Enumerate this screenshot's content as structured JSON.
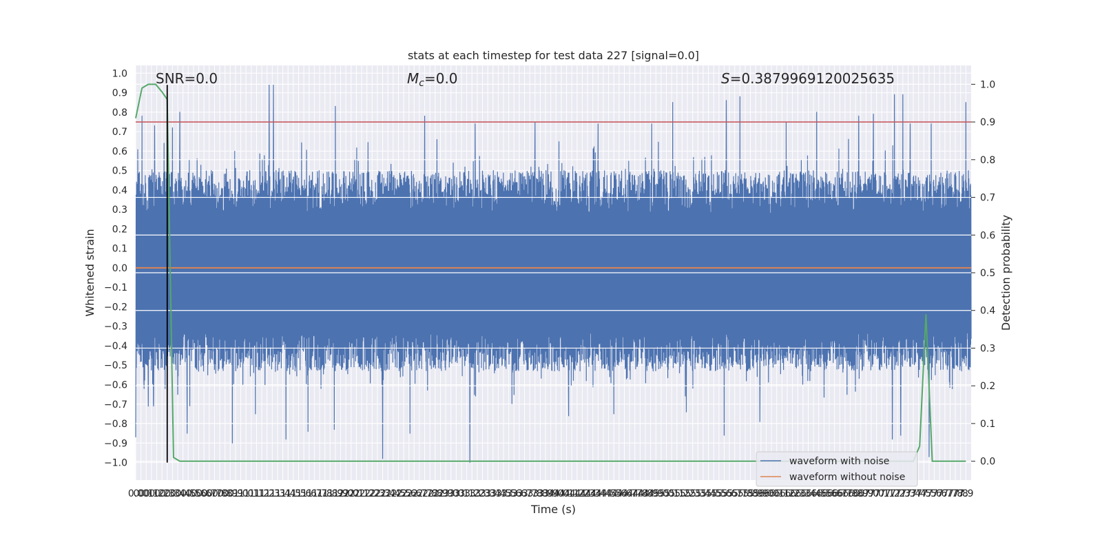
{
  "chart_data": {
    "type": "line",
    "title": "stats at each timestep for test data 227 [signal=0.0]",
    "xlabel": "Time (s)",
    "ylabel": "Whitened strain",
    "y2label": "Detection probability",
    "xlim": [
      0.0,
      7.95
    ],
    "ylim": [
      -1.09,
      1.04
    ],
    "y2lim": [
      -0.05,
      1.05
    ],
    "x_ticks": [
      0.0,
      0.05,
      0.1,
      0.15,
      0.2,
      0.25,
      0.3,
      0.35,
      0.4,
      0.45,
      0.5,
      0.55,
      0.6,
      0.65,
      0.7,
      0.75,
      0.8,
      0.85,
      0.9,
      0.95,
      1.0,
      1.05,
      1.1,
      1.15,
      1.2,
      1.25,
      1.3,
      1.35,
      1.4,
      1.45,
      1.5,
      1.55,
      1.6,
      1.65,
      1.7,
      1.75,
      1.8,
      1.85,
      1.9,
      1.95,
      2.0,
      2.05,
      2.1,
      2.15,
      2.2,
      2.25,
      2.3,
      2.35,
      2.4,
      2.45,
      2.5,
      2.55,
      2.6,
      2.65,
      2.7,
      2.75,
      2.8,
      2.85,
      2.9,
      2.95,
      3.0,
      3.05,
      3.1,
      3.15,
      3.2,
      3.25,
      3.3,
      3.35,
      3.4,
      3.45,
      3.5,
      3.55,
      3.6,
      3.65,
      3.7,
      3.75,
      3.8,
      3.85,
      3.9,
      3.95,
      4.0,
      4.05,
      4.1,
      4.15,
      4.2,
      4.25,
      4.3,
      4.35,
      4.4,
      4.45,
      4.5,
      4.55,
      4.6,
      4.65,
      4.7,
      4.75,
      4.8,
      4.85,
      4.9,
      4.95,
      5.0,
      5.05,
      5.1,
      5.15,
      5.2,
      5.25,
      5.3,
      5.35,
      5.4,
      5.45,
      5.5,
      5.55,
      5.6,
      5.65,
      5.7,
      5.75,
      5.8,
      5.85,
      5.9,
      5.95,
      6.0,
      6.05,
      6.1,
      6.15,
      6.2,
      6.25,
      6.3,
      6.35,
      6.4,
      6.45,
      6.5,
      6.55,
      6.6,
      6.65,
      6.7,
      6.75,
      6.8,
      6.85,
      6.9,
      6.95,
      7.0,
      7.05,
      7.1,
      7.15,
      7.2,
      7.25,
      7.3,
      7.35,
      7.4,
      7.45,
      7.5,
      7.55,
      7.6,
      7.65,
      7.7,
      7.75,
      7.8,
      7.85,
      7.9
    ],
    "x_tick_labels": [
      "0.0",
      "0.0",
      "0.1",
      "0.1",
      "0.2",
      "0.2",
      "0.3",
      "0.3",
      "0.4",
      "0.4",
      "0.5",
      "0.5",
      "0.6",
      "0.6",
      "0.7",
      "0.7",
      "0.8",
      "0.8",
      "0.9",
      "0.9",
      "1.0",
      "1.0",
      "1.1",
      "1.1",
      "1.2",
      "1.2",
      "1.3",
      "1.3",
      "1.4",
      "1.4",
      "1.5",
      "1.5",
      "1.6",
      "1.6",
      "1.7",
      "1.7",
      "1.8",
      "1.8",
      "1.9",
      "1.9",
      "2.0",
      "2.0",
      "2.1",
      "2.1",
      "2.2",
      "2.2",
      "2.3",
      "2.3",
      "2.4",
      "2.4",
      "2.5",
      "2.5",
      "2.6",
      "2.6",
      "2.7",
      "2.7",
      "2.8",
      "2.8",
      "2.9",
      "2.9",
      "3.0",
      "3.0",
      "3.1",
      "3.1",
      "3.2",
      "3.2",
      "3.3",
      "3.3",
      "3.4",
      "3.4",
      "3.5",
      "3.5",
      "3.6",
      "3.6",
      "3.7",
      "3.7",
      "3.8",
      "3.8",
      "3.9",
      "3.9",
      "4.0",
      "4.0",
      "4.1",
      "4.1",
      "4.2",
      "4.2",
      "4.3",
      "4.3",
      "4.4",
      "4.4",
      "4.5",
      "4.5",
      "4.6",
      "4.6",
      "4.7",
      "4.7",
      "4.8",
      "4.8",
      "4.9",
      "4.9",
      "5.0",
      "5.0",
      "5.1",
      "5.1",
      "5.2",
      "5.2",
      "5.3",
      "5.3",
      "5.4",
      "5.4",
      "5.5",
      "5.5",
      "5.6",
      "5.6",
      "5.7",
      "5.7",
      "5.8",
      "5.8",
      "5.9",
      "5.9",
      "6.0",
      "6.0",
      "6.1",
      "6.1",
      "6.2",
      "6.2",
      "6.3",
      "6.3",
      "6.4",
      "6.4",
      "6.5",
      "6.5",
      "6.6",
      "6.6",
      "6.7",
      "6.7",
      "6.8",
      "6.8",
      "6.9",
      "6.9",
      "7.0",
      "7.0",
      "7.1",
      "7.1",
      "7.2",
      "7.2",
      "7.3",
      "7.3",
      "7.4",
      "7.4",
      "7.5",
      "7.5",
      "7.6",
      "7.6",
      "7.7",
      "7.7",
      "7.8",
      "7.8",
      "7.9"
    ],
    "y_ticks": [
      -1.0,
      -0.9,
      -0.8,
      -0.7,
      -0.6,
      -0.5,
      -0.4,
      -0.3,
      -0.2,
      -0.1,
      0.0,
      0.1,
      0.2,
      0.3,
      0.4,
      0.5,
      0.6,
      0.7,
      0.8,
      0.9,
      1.0
    ],
    "y_tick_labels": [
      "−1.0",
      "−0.9",
      "−0.8",
      "−0.7",
      "−0.6",
      "−0.5",
      "−0.4",
      "−0.3",
      "−0.2",
      "−0.1",
      "0.0",
      "0.1",
      "0.2",
      "0.3",
      "0.4",
      "0.5",
      "0.6",
      "0.7",
      "0.8",
      "0.9",
      "1.0"
    ],
    "y2_ticks": [
      0.0,
      0.1,
      0.2,
      0.3,
      0.4,
      0.5,
      0.6,
      0.7,
      0.8,
      0.9,
      1.0
    ],
    "y2_tick_labels": [
      "0.0",
      "0.1",
      "0.2",
      "0.3",
      "0.4",
      "0.5",
      "0.6",
      "0.7",
      "0.8",
      "0.9",
      "1.0"
    ],
    "grid": true,
    "legend_position": "bottom-right",
    "annotations": {
      "snr": "SNR=0.0",
      "mc": "=0.0",
      "mc_symbol": "M",
      "mc_subscript": "c",
      "s": "=0.3879969120025635",
      "s_symbol": "S"
    },
    "threshold": {
      "y": 0.9,
      "axis": "right",
      "color": "#c44e52"
    },
    "marker_line": {
      "x": 0.3,
      "y_range": [
        -1.0,
        0.94
      ],
      "color": "#000000"
    },
    "series": [
      {
        "name": "waveform with noise",
        "color": "#4c72b0",
        "axis": "left",
        "description_type": "dense_noise",
        "x_range": [
          0.0,
          7.95
        ],
        "envelope_high": 0.94,
        "envelope_low": -1.0,
        "peaks_high": [
          [
            0.06,
            0.78
          ],
          [
            0.18,
            0.73
          ],
          [
            0.27,
            0.64
          ],
          [
            0.35,
            0.72
          ],
          [
            0.42,
            0.8
          ],
          [
            0.49,
            0.82
          ],
          [
            1.27,
            0.94
          ],
          [
            1.31,
            0.94
          ],
          [
            1.9,
            0.83
          ],
          [
            2.75,
            0.78
          ],
          [
            3.23,
            0.74
          ],
          [
            3.8,
            0.75
          ],
          [
            4.4,
            0.74
          ],
          [
            4.91,
            0.74
          ],
          [
            5.11,
            0.85
          ],
          [
            5.62,
            0.86
          ],
          [
            5.75,
            0.88
          ],
          [
            6.19,
            0.75
          ],
          [
            6.48,
            0.8
          ],
          [
            6.88,
            0.78
          ],
          [
            7.02,
            0.79
          ],
          [
            7.22,
            0.89
          ],
          [
            7.3,
            0.89
          ],
          [
            7.37,
            0.74
          ],
          [
            7.57,
            0.74
          ],
          [
            7.9,
            0.85
          ]
        ],
        "peaks_low": [
          [
            0.0,
            -0.87
          ],
          [
            0.08,
            -0.62
          ],
          [
            0.12,
            -0.71
          ],
          [
            0.17,
            -0.71
          ],
          [
            0.28,
            -0.62
          ],
          [
            0.4,
            -0.65
          ],
          [
            0.49,
            -0.85
          ],
          [
            0.92,
            -0.9
          ],
          [
            1.14,
            -0.75
          ],
          [
            1.43,
            -0.88
          ],
          [
            1.64,
            -0.84
          ],
          [
            1.89,
            -0.83
          ],
          [
            2.35,
            -0.98
          ],
          [
            2.61,
            -0.85
          ],
          [
            3.18,
            -1.0
          ],
          [
            4.12,
            -0.76
          ],
          [
            4.55,
            -0.75
          ],
          [
            5.24,
            -0.74
          ],
          [
            5.6,
            -0.86
          ],
          [
            5.94,
            -0.79
          ],
          [
            7.2,
            -0.88
          ],
          [
            7.28,
            -0.86
          ],
          [
            7.55,
            -0.97
          ]
        ]
      },
      {
        "name": "waveform without noise",
        "color": "#dd8452",
        "axis": "left",
        "x": [
          0.0,
          7.95
        ],
        "values": [
          0.0,
          0.0
        ]
      },
      {
        "name": "detection probability",
        "color": "#55a868",
        "axis": "right",
        "x": [
          0.0,
          0.06,
          0.12,
          0.19,
          0.25,
          0.3,
          0.36,
          0.42,
          0.48,
          7.4,
          7.46,
          7.52,
          7.58,
          7.64,
          7.9
        ],
        "values": [
          0.91,
          0.99,
          1.0,
          1.0,
          0.98,
          0.96,
          0.01,
          0.0,
          0.0,
          0.0,
          0.04,
          0.39,
          0.0,
          0.0,
          0.0
        ]
      }
    ]
  }
}
